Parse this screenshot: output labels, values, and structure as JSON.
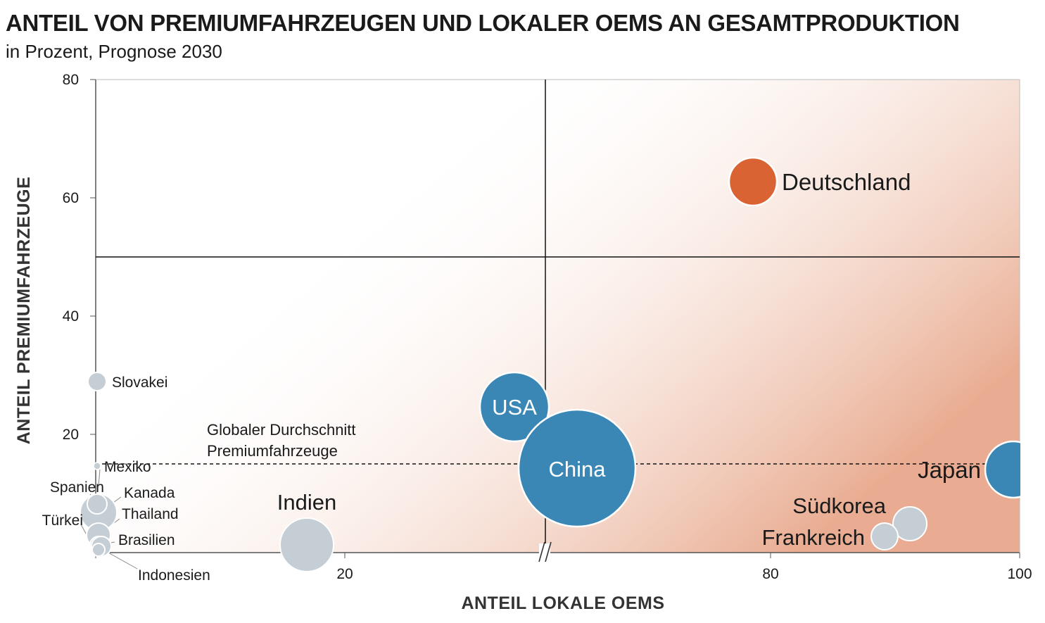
{
  "title": "ANTEIL VON PREMIUMFAHRZEUGEN UND LOKALER OEMS AN GESAMTPRODUKTION",
  "subtitle": "in Prozent, Prognose 2030",
  "chart_data": {
    "type": "scatter",
    "xlabel": "ANTEIL LOKALE OEMS",
    "ylabel": "ANTEIL PREMIUMFAHRZEUGE",
    "x_ticks": [
      "20",
      "80",
      "100"
    ],
    "y_ticks": [
      "80",
      "60",
      "40",
      "20"
    ],
    "ylim": [
      0,
      80
    ],
    "x_axis_break": true,
    "reference_line": {
      "label_line1": "Globaler Durchschnitt",
      "label_line2": "Premiumfahrzeuge",
      "y": 15
    },
    "quadrant_lines": {
      "y": 50
    },
    "colors": {
      "highlight": "#d96332",
      "primary": "#3a87b5",
      "other": "#c5ced4",
      "gradient": "#e8a88c"
    },
    "points": [
      {
        "name": "Deutschland",
        "x": 78,
        "y": 62.5,
        "color": "#d96332"
      },
      {
        "name": "USA",
        "x": 43,
        "y": 24.5,
        "color": "#3a87b5"
      },
      {
        "name": "China",
        "x": 54,
        "y": 14.5,
        "color": "#3a87b5"
      },
      {
        "name": "Japan",
        "x": 99.8,
        "y": 14.5,
        "color": "#3a87b5"
      },
      {
        "name": "Südkorea",
        "x": 94,
        "y": 5,
        "color": "#c5ced4"
      },
      {
        "name": "Frankreich",
        "x": 91,
        "y": 3,
        "color": "#c5ced4"
      },
      {
        "name": "Indien",
        "x": 17,
        "y": 1.5,
        "color": "#c5ced4"
      },
      {
        "name": "Slovakei",
        "x": 0.3,
        "y": 29,
        "color": "#c5ced4"
      },
      {
        "name": "Mexiko",
        "x": 0.3,
        "y": 15,
        "color": "#c5ced4"
      },
      {
        "name": "Spanien",
        "x": 0.3,
        "y": 8,
        "color": "#c5ced4"
      },
      {
        "name": "Kanada",
        "x": 0.3,
        "y": 7,
        "color": "#c5ced4"
      },
      {
        "name": "Thailand",
        "x": 0.3,
        "y": 5,
        "color": "#c5ced4"
      },
      {
        "name": "Türkei",
        "x": 0.3,
        "y": 3,
        "color": "#c5ced4"
      },
      {
        "name": "Brasilien",
        "x": 0.3,
        "y": 2,
        "color": "#c5ced4"
      },
      {
        "name": "Indonesien",
        "x": 0.3,
        "y": 1,
        "color": "#c5ced4"
      }
    ]
  }
}
